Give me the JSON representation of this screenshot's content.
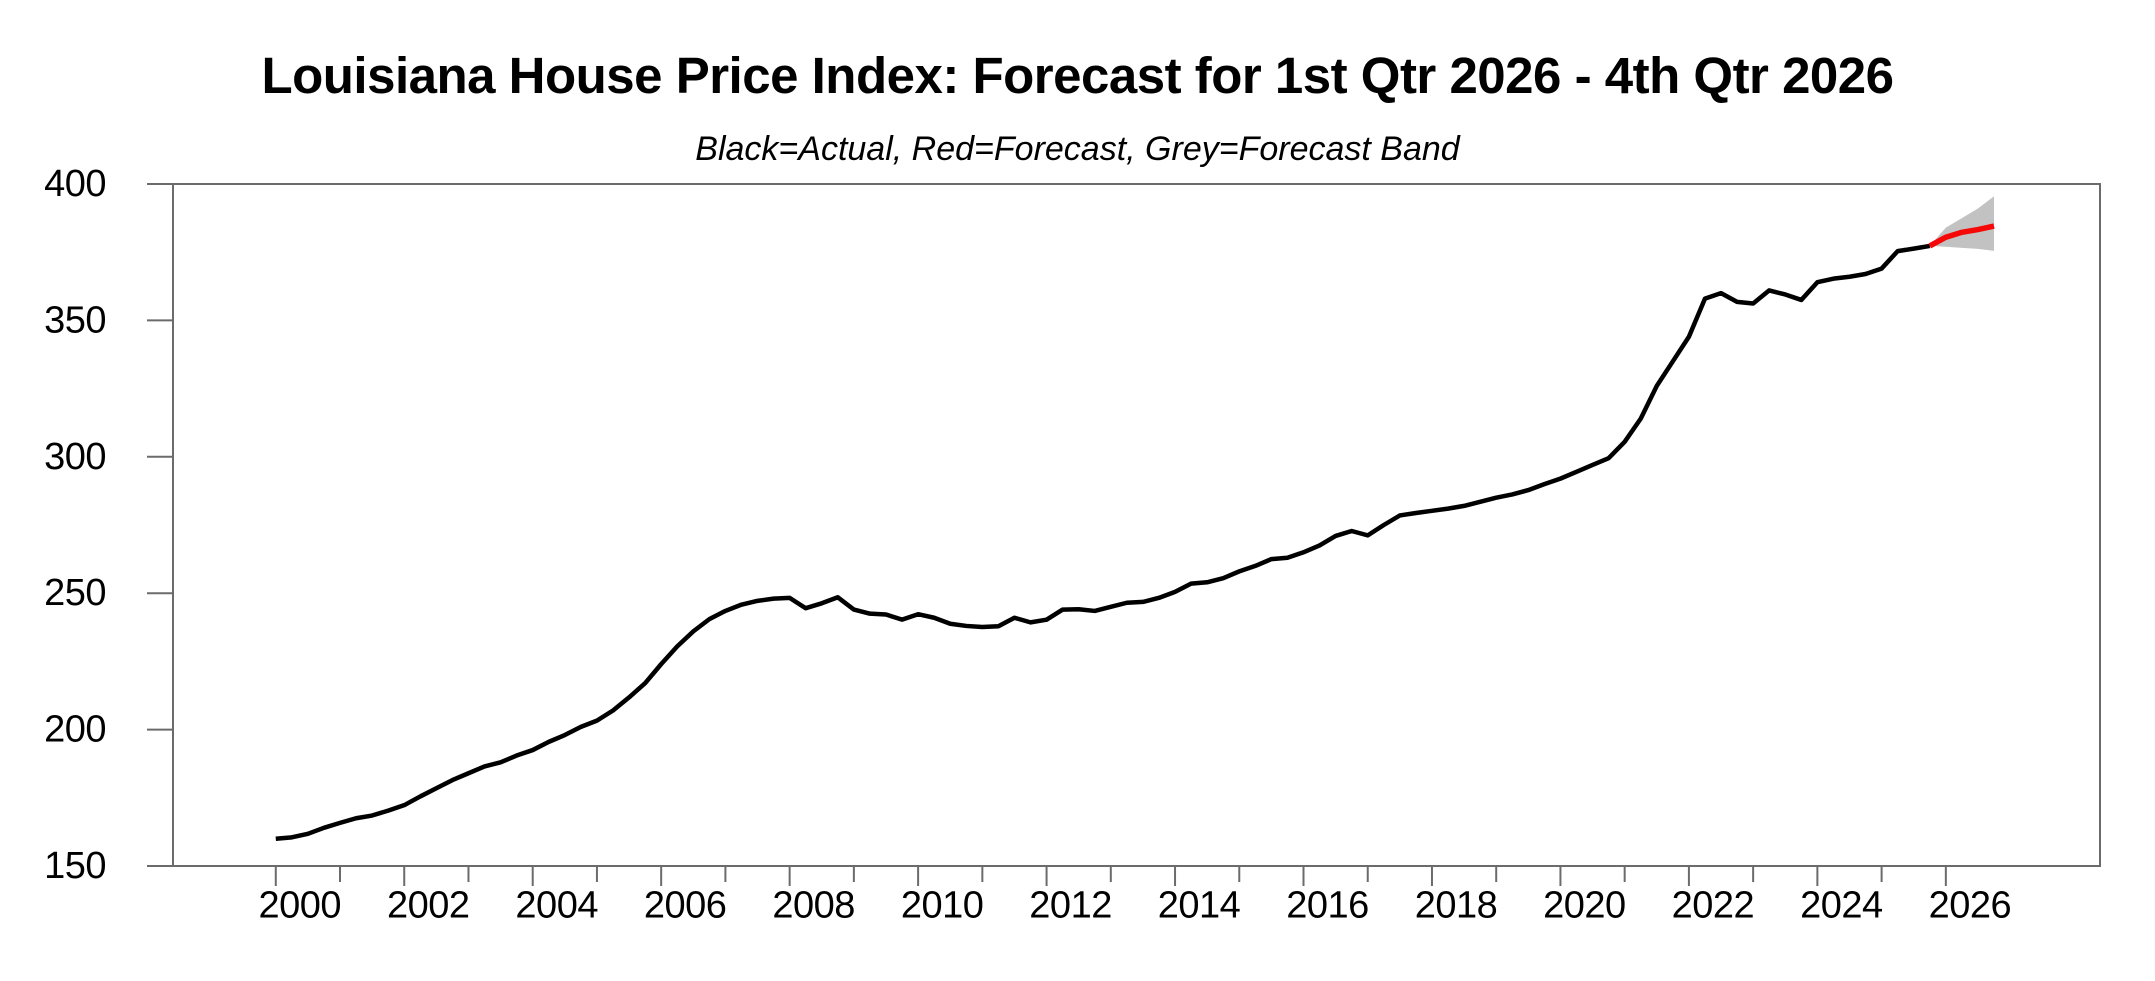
{
  "chart_data": {
    "type": "line",
    "title": "Louisiana House Price Index: Forecast for 1st Qtr 2026 - 4th Qtr 2026",
    "subtitle": "Black=Actual, Red=Forecast, Grey=Forecast Band",
    "xlabel": "",
    "ylabel": "",
    "xlim": [
      1998.4,
      2028.4
    ],
    "ylim": [
      150,
      400
    ],
    "grid": false,
    "legend_position": "none",
    "y_ticks": [
      150,
      200,
      250,
      300,
      350,
      400
    ],
    "x_minor_ticks": [
      2000,
      2001,
      2002,
      2003,
      2004,
      2005,
      2006,
      2007,
      2008,
      2009,
      2010,
      2011,
      2012,
      2013,
      2014,
      2015,
      2016,
      2017,
      2018,
      2019,
      2020,
      2021,
      2022,
      2023,
      2024,
      2025,
      2026
    ],
    "x_labeled_ticks": [
      2000,
      2002,
      2004,
      2006,
      2008,
      2010,
      2012,
      2014,
      2016,
      2018,
      2020,
      2022,
      2024,
      2026
    ],
    "colors": {
      "actual": "#000000",
      "forecast": "#f70808",
      "band": "#c2c2c2",
      "frame": "#6b6b6b",
      "text": "#000000"
    },
    "series": [
      {
        "name": "Actual",
        "role": "actual-line",
        "color": "#000000",
        "x_start": 2000.0,
        "x_step": 0.25,
        "values": [
          160.0,
          160.5,
          161.8,
          164.0,
          165.8,
          167.5,
          168.5,
          170.3,
          172.3,
          175.5,
          178.5,
          181.5,
          184.0,
          186.5,
          188.0,
          190.5,
          192.5,
          195.5,
          198.0,
          201.0,
          203.3,
          207.0,
          211.8,
          217.0,
          224.0,
          230.5,
          236.0,
          240.5,
          243.5,
          245.8,
          247.2,
          248.0,
          248.3,
          244.5,
          246.3,
          248.5,
          244.0,
          242.5,
          242.2,
          240.3,
          242.3,
          241.0,
          238.8,
          238.0,
          237.6,
          237.9,
          241.0,
          239.3,
          240.3,
          244.0,
          244.1,
          243.5,
          245.0,
          246.5,
          246.8,
          248.3,
          250.5,
          253.5,
          254.0,
          255.5,
          258.0,
          260.0,
          262.5,
          263.0,
          265.0,
          267.5,
          271.0,
          272.8,
          271.2,
          275.0,
          278.5,
          279.4,
          280.2,
          281.0,
          282.0,
          283.5,
          285.0,
          286.2,
          287.8,
          290.0,
          292.0,
          294.5,
          297.0,
          299.5,
          305.5,
          314.0,
          326.0,
          335.0,
          344.0,
          358.0,
          360.0,
          356.8,
          356.2,
          361.0,
          359.5,
          357.5,
          364.0,
          365.3,
          366.0,
          367.0,
          369.0,
          375.4,
          376.3,
          377.3
        ]
      },
      {
        "name": "Forecast",
        "role": "forecast-line",
        "color": "#f70808",
        "x": [
          2025.75,
          2026.0,
          2026.25,
          2026.5,
          2026.75
        ],
        "values": [
          377.3,
          380.5,
          382.3,
          383.3,
          384.6
        ]
      },
      {
        "name": "Forecast Band",
        "role": "forecast-band",
        "color": "#c2c2c2",
        "x": [
          2025.75,
          2026.0,
          2026.25,
          2026.5,
          2026.75
        ],
        "upper": [
          377.3,
          384.0,
          387.5,
          391.0,
          395.5
        ],
        "lower": [
          377.3,
          377.0,
          376.6,
          376.2,
          375.5
        ]
      }
    ]
  }
}
